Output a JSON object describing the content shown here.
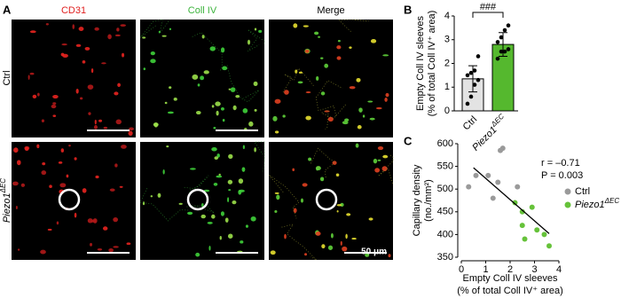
{
  "figure": {
    "panels": [
      "A",
      "B",
      "C"
    ],
    "columns": [
      "CD31",
      "Coll IV",
      "Merge"
    ],
    "rows": [
      {
        "text": "Ctrl"
      },
      {
        "text": "Piezo1",
        "sup": "ΔEC"
      }
    ],
    "scale_bar": "50 μm"
  },
  "chart_data": [
    {
      "type": "bar",
      "ylabel": [
        "Empty Coll IV sleeves",
        "(% of total Coll IV⁺ area)"
      ],
      "categories": [
        "Ctrl",
        "Piezo1"
      ],
      "category_superscripts": [
        null,
        "ΔEC"
      ],
      "values": [
        1.35,
        2.8
      ],
      "errors": [
        0.55,
        0.5
      ],
      "colors": [
        "#e3e3e3",
        "#55b82e"
      ],
      "points": [
        [
          0.3,
          0.6,
          1.1,
          1.3,
          1.5,
          1.6,
          1.7,
          2.3
        ],
        [
          2.2,
          2.5,
          2.5,
          2.6,
          2.9,
          3.1,
          3.4,
          3.6
        ]
      ],
      "ylim": [
        0,
        4
      ],
      "yticks": [
        0,
        1,
        2,
        3,
        4
      ],
      "annotation": "###"
    },
    {
      "type": "scatter",
      "ylabel": [
        "Capillary density",
        "(no./mm²)"
      ],
      "xlabel": [
        "Empty Coll IV sleeves",
        "(% of total Coll IV⁺ area)"
      ],
      "series": [
        {
          "name": "Ctrl",
          "color": "#9a9a9a",
          "x": [
            0.3,
            0.6,
            1.1,
            1.3,
            1.5,
            1.6,
            1.7,
            2.3
          ],
          "values": [
            505,
            530,
            530,
            480,
            515,
            585,
            590,
            505
          ]
        },
        {
          "name": "Piezo1",
          "name_sup": "ΔEC",
          "color": "#66c23a",
          "x": [
            2.2,
            2.5,
            2.5,
            2.6,
            2.9,
            3.1,
            3.4,
            3.6
          ],
          "values": [
            470,
            450,
            420,
            390,
            460,
            410,
            400,
            375
          ]
        }
      ],
      "fit_line": {
        "x": [
          0.5,
          3.6
        ],
        "y": [
          547,
          402
        ]
      },
      "annotations": [
        "r = –0.71",
        "P = 0.003"
      ],
      "xlim": [
        0,
        4
      ],
      "xticks": [
        0,
        1,
        2,
        3,
        4
      ],
      "ylim": [
        350,
        600
      ],
      "yticks": [
        350,
        400,
        450,
        500,
        550,
        600
      ]
    }
  ]
}
